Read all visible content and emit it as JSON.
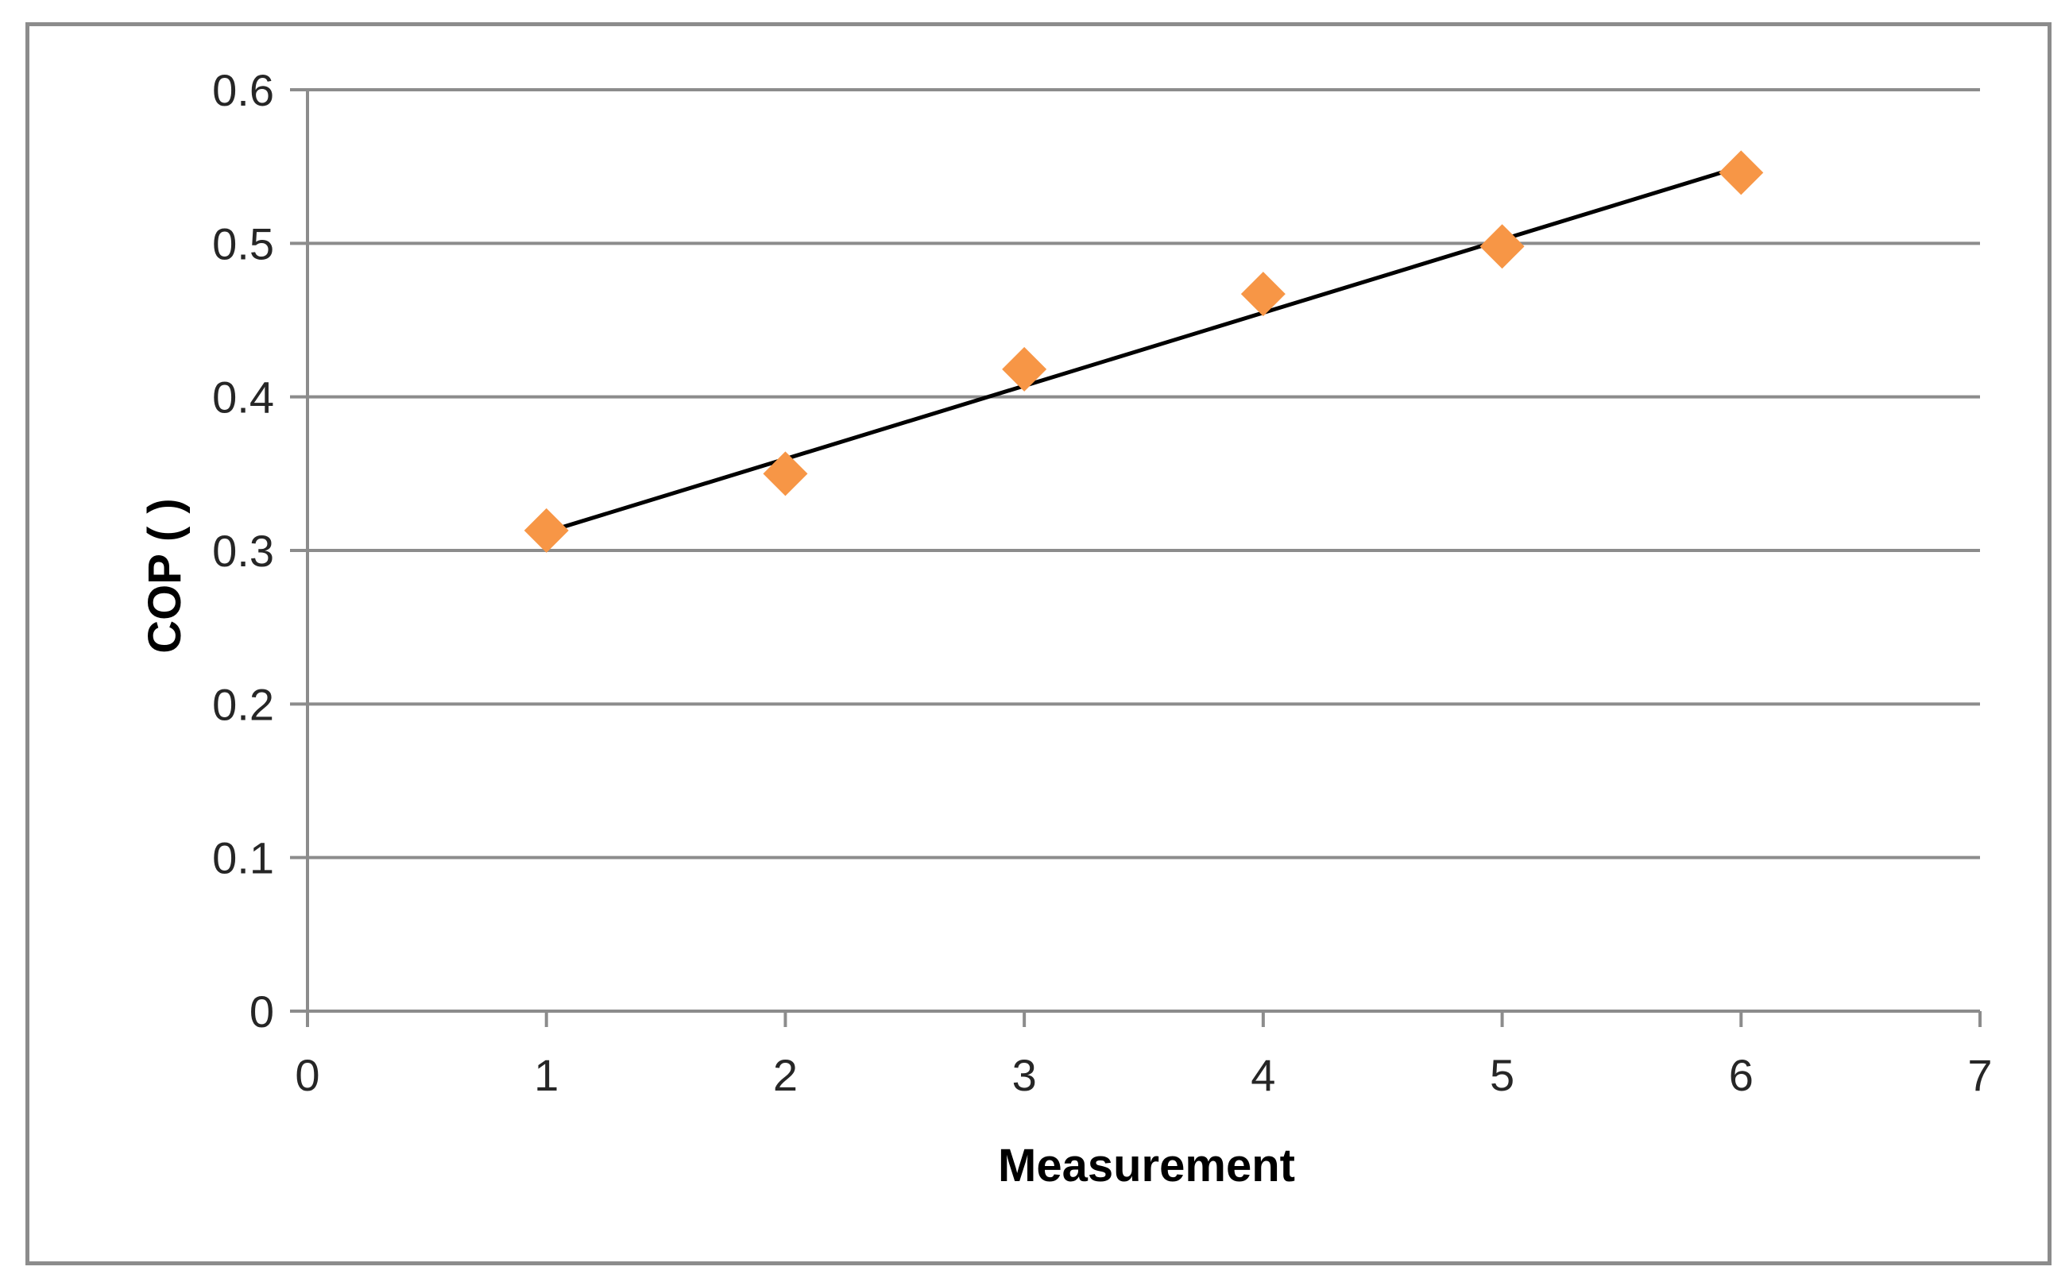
{
  "chart_data": {
    "type": "scatter",
    "title": "",
    "xlabel": "Measurement",
    "ylabel": "COP ( )",
    "xlim": [
      0,
      7
    ],
    "ylim": [
      0,
      0.6
    ],
    "xticks": [
      0,
      1,
      2,
      3,
      4,
      5,
      6,
      7
    ],
    "xtick_labels": [
      "0",
      "1",
      "2",
      "3",
      "4",
      "5",
      "6",
      "7"
    ],
    "yticks": [
      0,
      0.1,
      0.2,
      0.3,
      0.4,
      0.5,
      0.6
    ],
    "ytick_labels": [
      "0",
      "0.1",
      "0.2",
      "0.3",
      "0.4",
      "0.5",
      "0.6"
    ],
    "grid": "horizontal",
    "legend": "none",
    "series": [
      {
        "x": [
          1,
          2,
          3,
          4,
          5,
          6
        ],
        "y": [
          0.313,
          0.35,
          0.418,
          0.467,
          0.498,
          0.546
        ],
        "marker": "diamond",
        "color": "#F79646"
      }
    ],
    "trendline": {
      "type": "linear",
      "x": [
        1,
        6
      ],
      "y": [
        0.312,
        0.55
      ],
      "color": "#000000"
    },
    "colors": {
      "grid": "#8c8c8c",
      "axis": "#8c8c8c",
      "border": "#8c8c8c"
    }
  }
}
